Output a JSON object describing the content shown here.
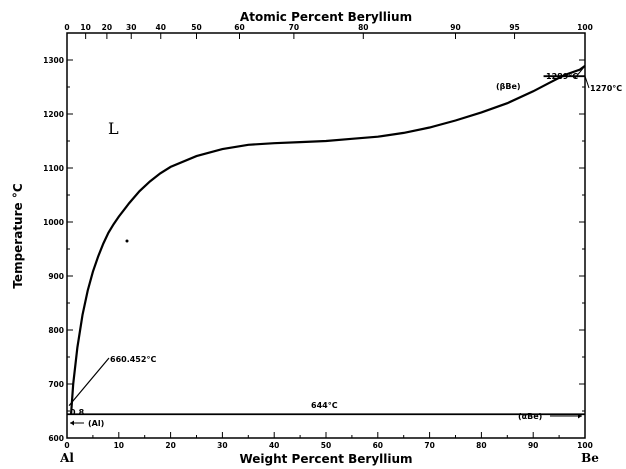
{
  "chart_data": {
    "type": "line",
    "xlabel": "Weight Percent Beryllium",
    "ylabel": "Temperature °C",
    "top_axis_label": "Atomic Percent Beryllium",
    "xlim": [
      0,
      100
    ],
    "ylim": [
      600,
      1350
    ],
    "x_ticks": [
      "0",
      "10",
      "20",
      "30",
      "40",
      "50",
      "60",
      "70",
      "80",
      "90",
      "100"
    ],
    "y_ticks": [
      "600",
      "700",
      "800",
      "900",
      "1000",
      "1100",
      "1200",
      "1300"
    ],
    "top_ticks": [
      {
        "label": "0",
        "at_wt": 0
      },
      {
        "label": "10",
        "at_wt": 3.6
      },
      {
        "label": "20",
        "at_wt": 7.7
      },
      {
        "label": "30",
        "at_wt": 12.4
      },
      {
        "label": "40",
        "at_wt": 18.1
      },
      {
        "label": "50",
        "at_wt": 25.0
      },
      {
        "label": "60",
        "at_wt": 33.3
      },
      {
        "label": "70",
        "at_wt": 43.8
      },
      {
        "label": "80",
        "at_wt": 57.2
      },
      {
        "label": "90",
        "at_wt": 75.0
      },
      {
        "label": "95",
        "at_wt": 86.4
      },
      {
        "label": "100",
        "at_wt": 100
      }
    ],
    "left_end_label": "Al",
    "right_end_label": "Be",
    "series": [
      {
        "x": [
          0.8,
          1.2,
          2,
          3,
          4,
          5,
          6,
          7,
          8,
          9,
          10,
          12,
          14,
          16,
          18,
          20,
          25,
          30,
          35,
          40,
          45,
          50,
          55,
          60,
          65,
          70,
          75,
          80,
          85,
          90,
          93,
          96,
          99,
          100
        ],
        "y": [
          645,
          700,
          768,
          828,
          873,
          908,
          936,
          960,
          980,
          996,
          1010,
          1035,
          1057,
          1075,
          1090,
          1102,
          1122,
          1135,
          1143,
          1146,
          1148,
          1150,
          1154,
          1158,
          1165,
          1175,
          1188,
          1203,
          1220,
          1242,
          1257,
          1272,
          1282,
          1289
        ]
      }
    ],
    "eutectic": {
      "y": 644,
      "x_start": 0,
      "x_end": 100
    },
    "polymorphic": {
      "y": 1270,
      "x_start": 92,
      "x_end": 100
    },
    "annotations": {
      "al_melting": "660.452°C",
      "be_melting": "1289°C",
      "be_transition": "1270°C",
      "eutectic_temp": "644°C",
      "eutectic_comp": "0.8",
      "phase_liquid": "L",
      "phase_beta_be": "(βBe)",
      "phase_al": "(Al)",
      "phase_alpha_be": "(αBe)"
    }
  }
}
